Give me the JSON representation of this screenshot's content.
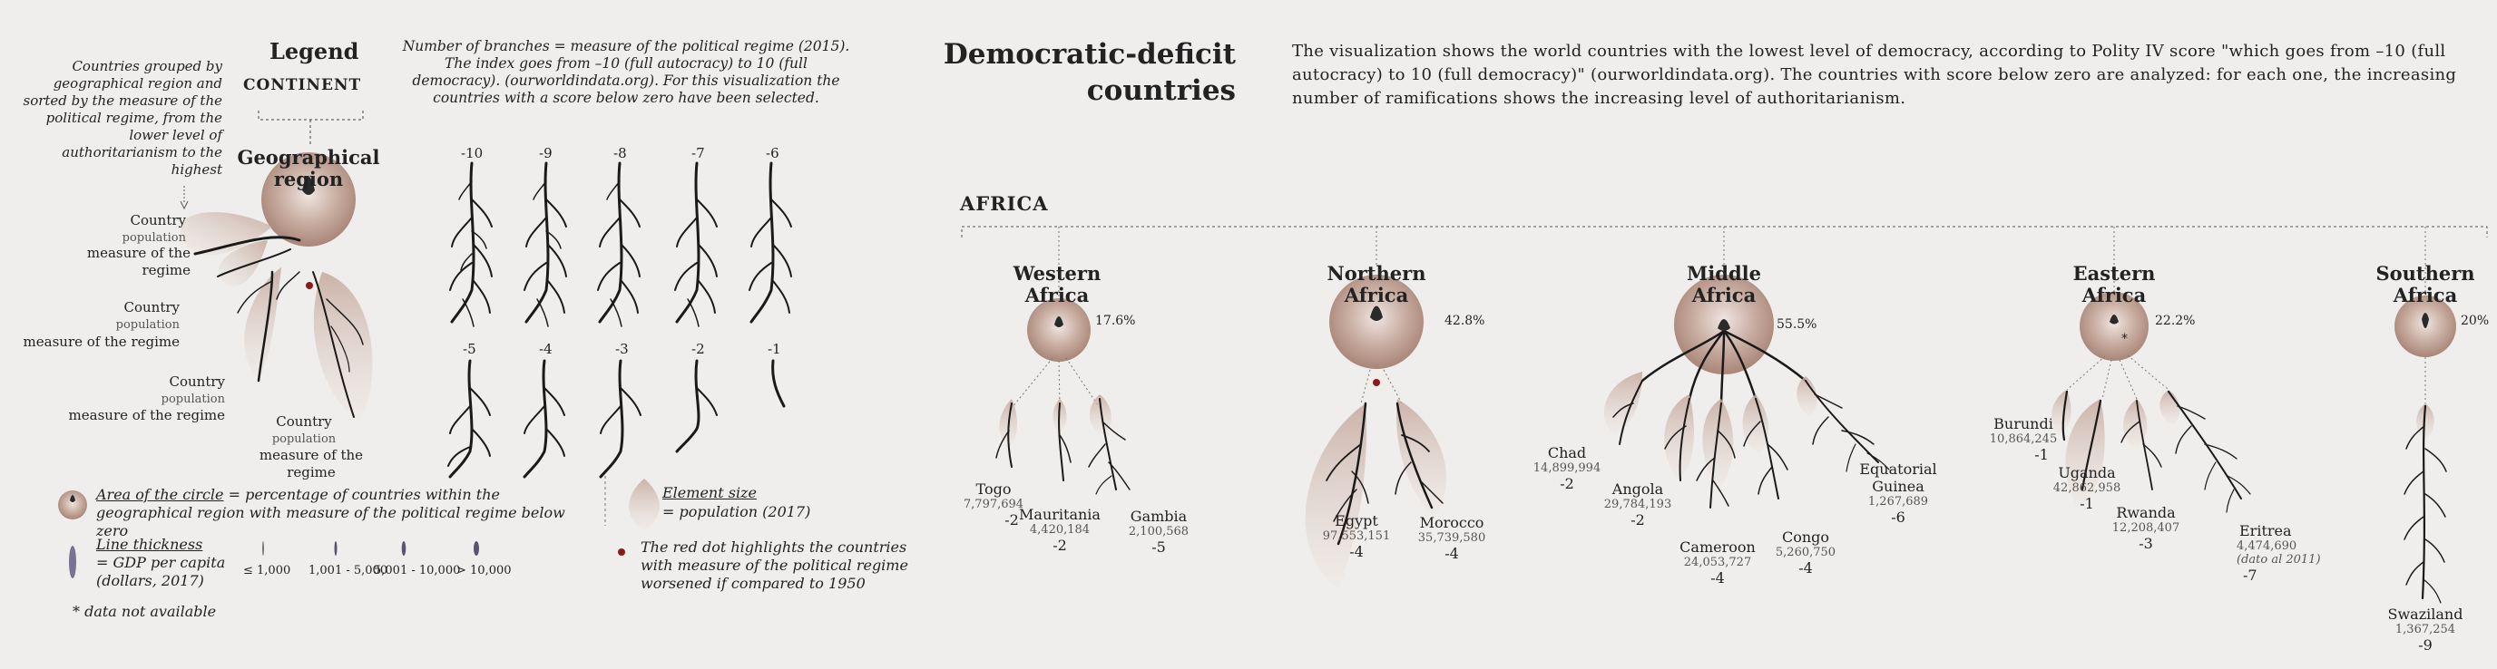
{
  "main": {
    "title_line1": "Democratic-deficit",
    "title_line2": "countries",
    "description": "The visualization shows the world countries with the lowest level of democracy, according to Polity IV score \"which goes from –10 (full autocracy) to 10 (full democracy)\" (ourworldindata.org). The countries with score below zero are analyzed: for each one, the increasing number of ramifications shows the increasing level of authoritarianism.",
    "continent": "AFRICA"
  },
  "legend": {
    "title": "Legend",
    "continent_label": "CONTINENT",
    "grouping_note": "Countries grouped by geographical region and sorted by the measure of the political regime, from the lower level of authoritarianism to the highest",
    "region_label": "Geographical region",
    "country_label": "Country",
    "population_label": "population",
    "measure_label": "measure of the regime",
    "branches_note": "Number of branches = measure of the political regime (2015). The index goes from –10 (full autocracy) to 10 (full democracy). (ourworldindata.org). For this visualization the countries with a score below zero have been selected.",
    "branch_values_row1": [
      "-10",
      "-9",
      "-8",
      "-7",
      "-6"
    ],
    "branch_values_row2": [
      "-5",
      "-4",
      "-3",
      "-2",
      "-1"
    ],
    "circle_area_key": "Area of the circle",
    "circle_area_text": " = percentage of countries within the geographical region with measure of the political regime below zero",
    "element_size_key": "Element size",
    "element_size_text": "= population (2017)",
    "line_thickness_key": "Line thickness",
    "line_thickness_text1": "= GDP per capita",
    "line_thickness_text2": "(dollars, 2017)",
    "gdp_bins": [
      "≤ 1,000",
      "1,001 - 5,000",
      "5,001 - 10,000",
      "> 10,000"
    ],
    "red_dot_text": "The red dot highlights the countries with measure of the political regime worsened if compared to 1950",
    "na_note": "* data not available"
  },
  "regions": [
    {
      "name_line1": "Western",
      "name_line2": "Africa",
      "pct": "17.6%",
      "countries": [
        {
          "name": "Togo",
          "population": "7,797,694",
          "value": "-2"
        },
        {
          "name": "Mauritania",
          "population": "4,420,184",
          "value": "-2"
        },
        {
          "name": "Gambia",
          "population": "2,100,568",
          "value": "-5"
        }
      ]
    },
    {
      "name_line1": "Northern",
      "name_line2": "Africa",
      "pct": "42.8%",
      "countries": [
        {
          "name": "Egypt",
          "population": "97,553,151",
          "value": "-4"
        },
        {
          "name": "Morocco",
          "population": "35,739,580",
          "value": "-4"
        }
      ]
    },
    {
      "name_line1": "Middle",
      "name_line2": "Africa",
      "pct": "55.5%",
      "countries": [
        {
          "name": "Chad",
          "population": "14,899,994",
          "value": "-2"
        },
        {
          "name": "Angola",
          "population": "29,784,193",
          "value": "-2"
        },
        {
          "name": "Cameroon",
          "population": "24,053,727",
          "value": "-4"
        },
        {
          "name": "Congo",
          "population": "5,260,750",
          "value": "-4"
        },
        {
          "name_line1": "Equatorial",
          "name_line2": "Guinea",
          "population": "1,267,689",
          "value": "-6"
        }
      ]
    },
    {
      "name_line1": "Eastern",
      "name_line2": "Africa",
      "pct": "22.2%",
      "countries": [
        {
          "name": "Burundi",
          "population": "10,864,245",
          "value": "-1"
        },
        {
          "name": "Uganda",
          "population": "42,862,958",
          "value": "-1"
        },
        {
          "name": "Rwanda",
          "population": "12,208,407",
          "value": "-3"
        },
        {
          "name": "Eritrea",
          "population": "4,474,690",
          "note": "(dato al 2011)",
          "value": "-7"
        }
      ]
    },
    {
      "name_line1": "Southern",
      "name_line2": "Africa",
      "pct": "20%",
      "countries": [
        {
          "name": "Swaziland",
          "population": "1,367,254",
          "value": "-9"
        }
      ]
    }
  ],
  "colors": {
    "circle": "#b89a8c",
    "branch": "#1a1a1a",
    "red_dot": "#8b1a1a",
    "background": "#efeeec"
  }
}
